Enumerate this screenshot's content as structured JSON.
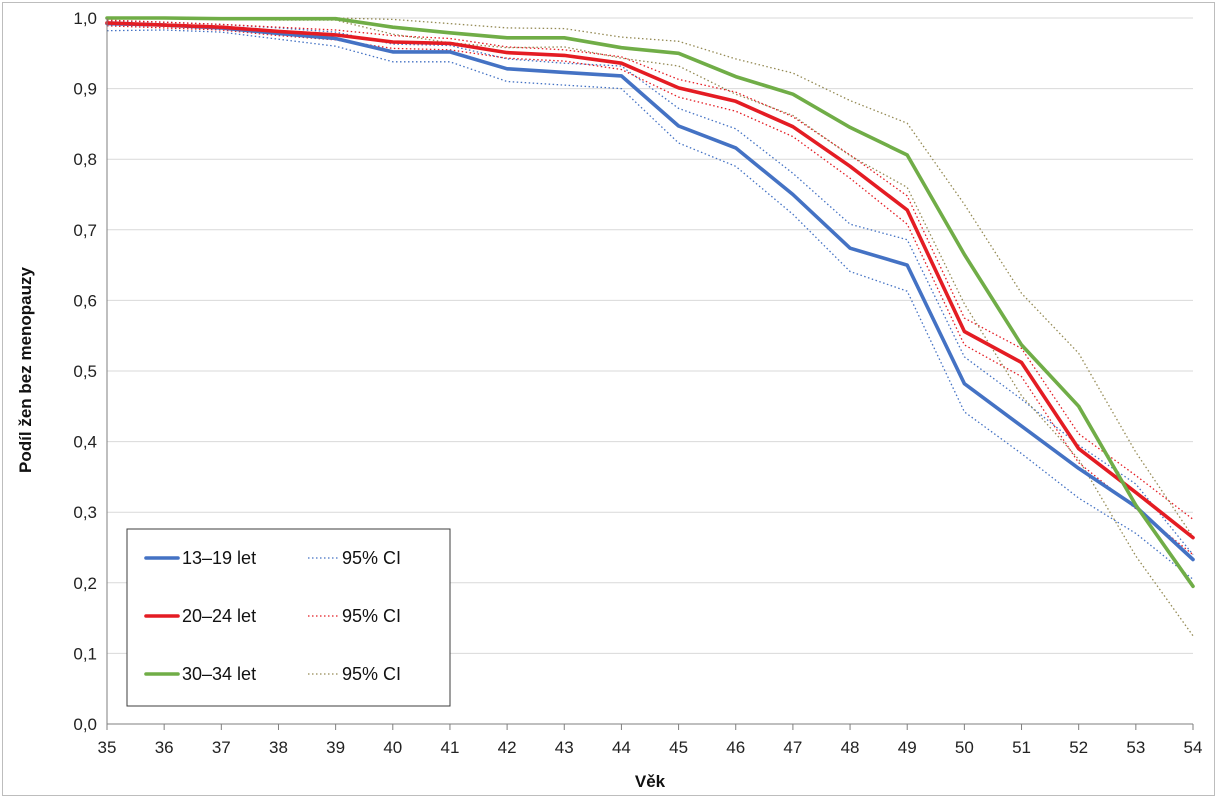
{
  "chart_data": {
    "type": "line",
    "title": "",
    "xlabel": "Věk",
    "ylabel": "Podíl žen bez menopauzy",
    "xlim": [
      35,
      54
    ],
    "ylim": [
      0,
      1
    ],
    "x_ticks": [
      "35",
      "36",
      "37",
      "38",
      "39",
      "40",
      "41",
      "42",
      "43",
      "44",
      "45",
      "46",
      "47",
      "48",
      "49",
      "50",
      "51",
      "52",
      "53",
      "54"
    ],
    "y_ticks": [
      "0,0",
      "0,1",
      "0,2",
      "0,3",
      "0,4",
      "0,5",
      "0,6",
      "0,7",
      "0,8",
      "0,9",
      "1,0"
    ],
    "grid": "horizontal",
    "legend_position": "bottom-left",
    "x": [
      35,
      36,
      37,
      38,
      39,
      40,
      41,
      42,
      43,
      44,
      45,
      46,
      47,
      48,
      49,
      50,
      51,
      52,
      53,
      54
    ],
    "series": [
      {
        "name": "13–19 let",
        "color": "#4472c4",
        "style": "solid",
        "values": [
          0.992,
          0.99,
          0.986,
          0.978,
          0.971,
          0.952,
          0.952,
          0.928,
          0.923,
          0.918,
          0.847,
          0.816,
          0.75,
          0.674,
          0.65,
          0.482,
          0.422,
          0.362,
          0.308,
          0.233
        ]
      },
      {
        "name": "95% CI",
        "group": "13–19 let",
        "color": "#4472c4",
        "style": "dotted",
        "values": [
          0.996,
          0.994,
          0.991,
          0.986,
          0.98,
          0.963,
          0.961,
          0.942,
          0.936,
          0.932,
          0.872,
          0.843,
          0.78,
          0.708,
          0.686,
          0.52,
          0.46,
          0.395,
          0.34,
          0.24
        ]
      },
      {
        "name": "95% CI",
        "group": "13–19 let",
        "color": "#4472c4",
        "style": "dotted",
        "values": [
          0.982,
          0.983,
          0.98,
          0.97,
          0.96,
          0.938,
          0.938,
          0.91,
          0.905,
          0.9,
          0.823,
          0.79,
          0.722,
          0.641,
          0.613,
          0.442,
          0.383,
          0.32,
          0.27,
          0.205
        ]
      },
      {
        "name": "20–24 let",
        "color": "#e41c23",
        "style": "solid",
        "values": [
          0.993,
          0.99,
          0.987,
          0.981,
          0.976,
          0.966,
          0.964,
          0.951,
          0.947,
          0.936,
          0.901,
          0.882,
          0.846,
          0.79,
          0.728,
          0.556,
          0.512,
          0.39,
          0.328,
          0.264
        ]
      },
      {
        "name": "95% CI",
        "group": "20–24 let",
        "color": "#e41c23",
        "style": "dotted",
        "values": [
          0.997,
          0.994,
          0.991,
          0.987,
          0.983,
          0.975,
          0.971,
          0.959,
          0.955,
          0.945,
          0.913,
          0.895,
          0.86,
          0.806,
          0.748,
          0.575,
          0.532,
          0.411,
          0.352,
          0.29
        ]
      },
      {
        "name": "95% CI",
        "group": "20–24 let",
        "color": "#e41c23",
        "style": "dotted",
        "values": [
          0.989,
          0.986,
          0.983,
          0.975,
          0.969,
          0.957,
          0.955,
          0.943,
          0.939,
          0.927,
          0.888,
          0.868,
          0.832,
          0.773,
          0.708,
          0.537,
          0.492,
          0.37,
          0.305,
          0.24
        ]
      },
      {
        "name": "30–34 let",
        "color": "#70ad47",
        "style": "solid",
        "values": [
          1.0,
          1.0,
          0.999,
          0.999,
          0.999,
          0.987,
          0.979,
          0.972,
          0.972,
          0.958,
          0.95,
          0.917,
          0.892,
          0.845,
          0.806,
          0.665,
          0.537,
          0.45,
          0.31,
          0.195
        ]
      },
      {
        "name": "95% CI",
        "group": "30–34 let",
        "color": "#948a54",
        "style": "dotted",
        "values": [
          1.0,
          1.0,
          1.0,
          1.0,
          1.0,
          0.998,
          0.992,
          0.986,
          0.985,
          0.973,
          0.967,
          0.942,
          0.922,
          0.883,
          0.851,
          0.736,
          0.61,
          0.525,
          0.385,
          0.265
        ]
      },
      {
        "name": "95% CI",
        "group": "30–34 let",
        "color": "#948a54",
        "style": "dotted",
        "values": [
          1.0,
          1.0,
          0.998,
          0.997,
          0.997,
          0.977,
          0.965,
          0.958,
          0.959,
          0.943,
          0.932,
          0.892,
          0.862,
          0.805,
          0.76,
          0.595,
          0.465,
          0.375,
          0.238,
          0.125
        ]
      }
    ],
    "legend": [
      {
        "label": "13–19 let",
        "ci_label": "95% CI",
        "color": "#4472c4",
        "ci_color": "#4472c4"
      },
      {
        "label": "20–24 let",
        "ci_label": "95% CI",
        "color": "#e41c23",
        "ci_color": "#e41c23"
      },
      {
        "label": "30–34 let",
        "ci_label": "95% CI",
        "color": "#70ad47",
        "ci_color": "#948a54"
      }
    ]
  }
}
